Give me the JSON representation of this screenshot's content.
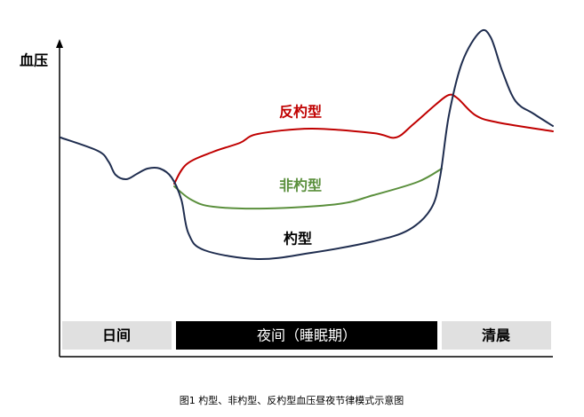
{
  "axis": {
    "y_label": "血压"
  },
  "curves": {
    "reverse_dipper": "反杓型",
    "non_dipper": "非杓型",
    "dipper": "杓型"
  },
  "periods": {
    "day": "日间",
    "night": "夜间（睡眠期）",
    "morning": "清晨"
  },
  "caption": "图1 杓型、非杓型、反杓型血压昼夜节律模式示意图"
}
